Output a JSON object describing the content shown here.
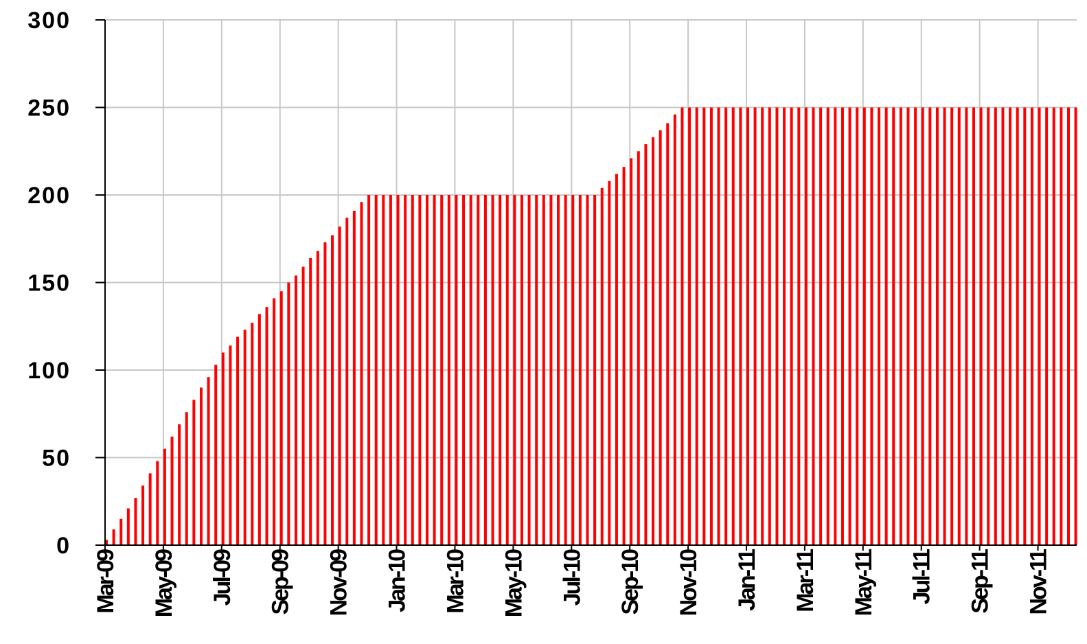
{
  "chart_data": {
    "type": "bar",
    "color": "#ff0000",
    "grid": true,
    "x": [
      0,
      0.25,
      0.5,
      0.75,
      1,
      1.25,
      1.5,
      1.75,
      2,
      2.25,
      2.5,
      2.75,
      3,
      3.25,
      3.5,
      3.75,
      4,
      4.25,
      4.5,
      4.75,
      5,
      5.25,
      5.5,
      5.75,
      6,
      6.25,
      6.5,
      6.75,
      7,
      7.25,
      7.5,
      7.75,
      8,
      8.25,
      8.5,
      8.75,
      9,
      9.25,
      9.5,
      9.75,
      10,
      10.25,
      10.5,
      10.75,
      11,
      11.25,
      11.5,
      11.75,
      12,
      12.25,
      12.5,
      12.75,
      13,
      13.25,
      13.5,
      13.75,
      14,
      14.25,
      14.5,
      14.75,
      15,
      15.25,
      15.5,
      15.75,
      16,
      16.25,
      16.5,
      16.75,
      17,
      17.25,
      17.5,
      17.75,
      18,
      18.25,
      18.5,
      18.75,
      19,
      19.25,
      19.5,
      19.75,
      20,
      20.25,
      20.5,
      20.75,
      21,
      21.25,
      21.5,
      21.75,
      22,
      22.25,
      22.5,
      22.75,
      23,
      23.25,
      23.5,
      23.75,
      24,
      24.25,
      24.5,
      24.75,
      25,
      25.25,
      25.5,
      25.75,
      26,
      26.25,
      26.5,
      26.75,
      27,
      27.25,
      27.5,
      27.75,
      28,
      28.25,
      28.5,
      28.75,
      29,
      29.25,
      29.5,
      29.75,
      30,
      30.25,
      30.5,
      30.75,
      31,
      31.25,
      31.5,
      31.75,
      32,
      32.25,
      32.5,
      32.75,
      33,
      33.25
    ],
    "values": [
      3,
      9,
      15,
      21,
      27,
      34,
      41,
      48,
      55,
      62,
      69,
      76,
      83,
      90,
      96,
      103,
      110,
      114,
      119,
      123,
      127,
      132,
      136,
      141,
      145,
      150,
      154,
      159,
      164,
      168,
      173,
      177,
      182,
      187,
      191,
      196,
      200,
      200,
      200,
      200,
      200,
      200,
      200,
      200,
      200,
      200,
      200,
      200,
      200,
      200,
      200,
      200,
      200,
      200,
      200,
      200,
      200,
      200,
      200,
      200,
      200,
      200,
      200,
      200,
      200,
      200,
      200,
      200,
      204,
      208,
      212,
      216,
      221,
      225,
      229,
      233,
      237,
      241,
      246,
      250,
      250,
      250,
      250,
      250,
      250,
      250,
      250,
      250,
      250,
      250,
      250,
      250,
      250,
      250,
      250,
      250,
      250,
      250,
      250,
      250,
      250,
      250,
      250,
      250,
      250,
      250,
      250,
      250,
      250,
      250,
      250,
      250,
      250,
      250,
      250,
      250,
      250,
      250,
      250,
      250,
      250,
      250,
      250,
      250,
      250,
      250,
      250,
      250,
      250,
      250,
      250,
      250,
      250,
      250
    ],
    "xlim": [
      0,
      33.33
    ],
    "xticks": [
      {
        "value": 0,
        "label": "Mar-09"
      },
      {
        "value": 2,
        "label": "May-09"
      },
      {
        "value": 4,
        "label": "Jul-09"
      },
      {
        "value": 6,
        "label": "Sep-09"
      },
      {
        "value": 8,
        "label": "Nov-09"
      },
      {
        "value": 10,
        "label": "Jan-10"
      },
      {
        "value": 12,
        "label": "Mar-10"
      },
      {
        "value": 14,
        "label": "May-10"
      },
      {
        "value": 16,
        "label": "Jul-10"
      },
      {
        "value": 18,
        "label": "Sep-10"
      },
      {
        "value": 20,
        "label": "Nov-10"
      },
      {
        "value": 22,
        "label": "Jan-11"
      },
      {
        "value": 24,
        "label": "Mar-11"
      },
      {
        "value": 26,
        "label": "May-11"
      },
      {
        "value": 28,
        "label": "Jul-11"
      },
      {
        "value": 30,
        "label": "Sep-11"
      },
      {
        "value": 32,
        "label": "Nov-11"
      }
    ],
    "ylim": [
      0,
      300
    ],
    "yticks": [
      0,
      50,
      100,
      150,
      200,
      250,
      300
    ]
  }
}
